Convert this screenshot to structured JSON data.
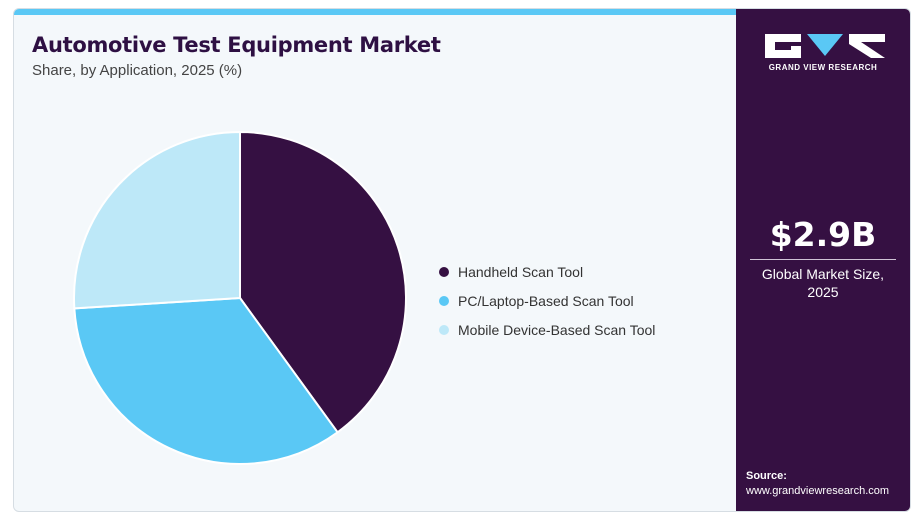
{
  "header": {
    "title": "Automotive Test Equipment Market",
    "subtitle": "Share, by Application, 2025 (%)"
  },
  "chart_data": {
    "type": "pie",
    "title": "Automotive Test Equipment Market",
    "subtitle": "Share, by Application, 2025 (%)",
    "categories": [
      "Handheld Scan Tool",
      "PC/Laptop-Based Scan Tool",
      "Mobile Device-Based Scan Tool"
    ],
    "values": [
      40,
      34,
      26
    ],
    "colors": [
      "#351042",
      "#5ac8f5",
      "#bde8f8"
    ],
    "legend_position": "right",
    "start_angle_deg": 0,
    "direction": "clockwise"
  },
  "sidebar": {
    "logo_text": "GRAND VIEW RESEARCH",
    "market_value": "$2.9B",
    "market_label_line1": "Global Market Size,",
    "market_label_line2": "2025",
    "source_label": "Source:",
    "source_url": "www.grandviewresearch.com"
  },
  "icons": {
    "logo": "gvr-logo-icon"
  }
}
